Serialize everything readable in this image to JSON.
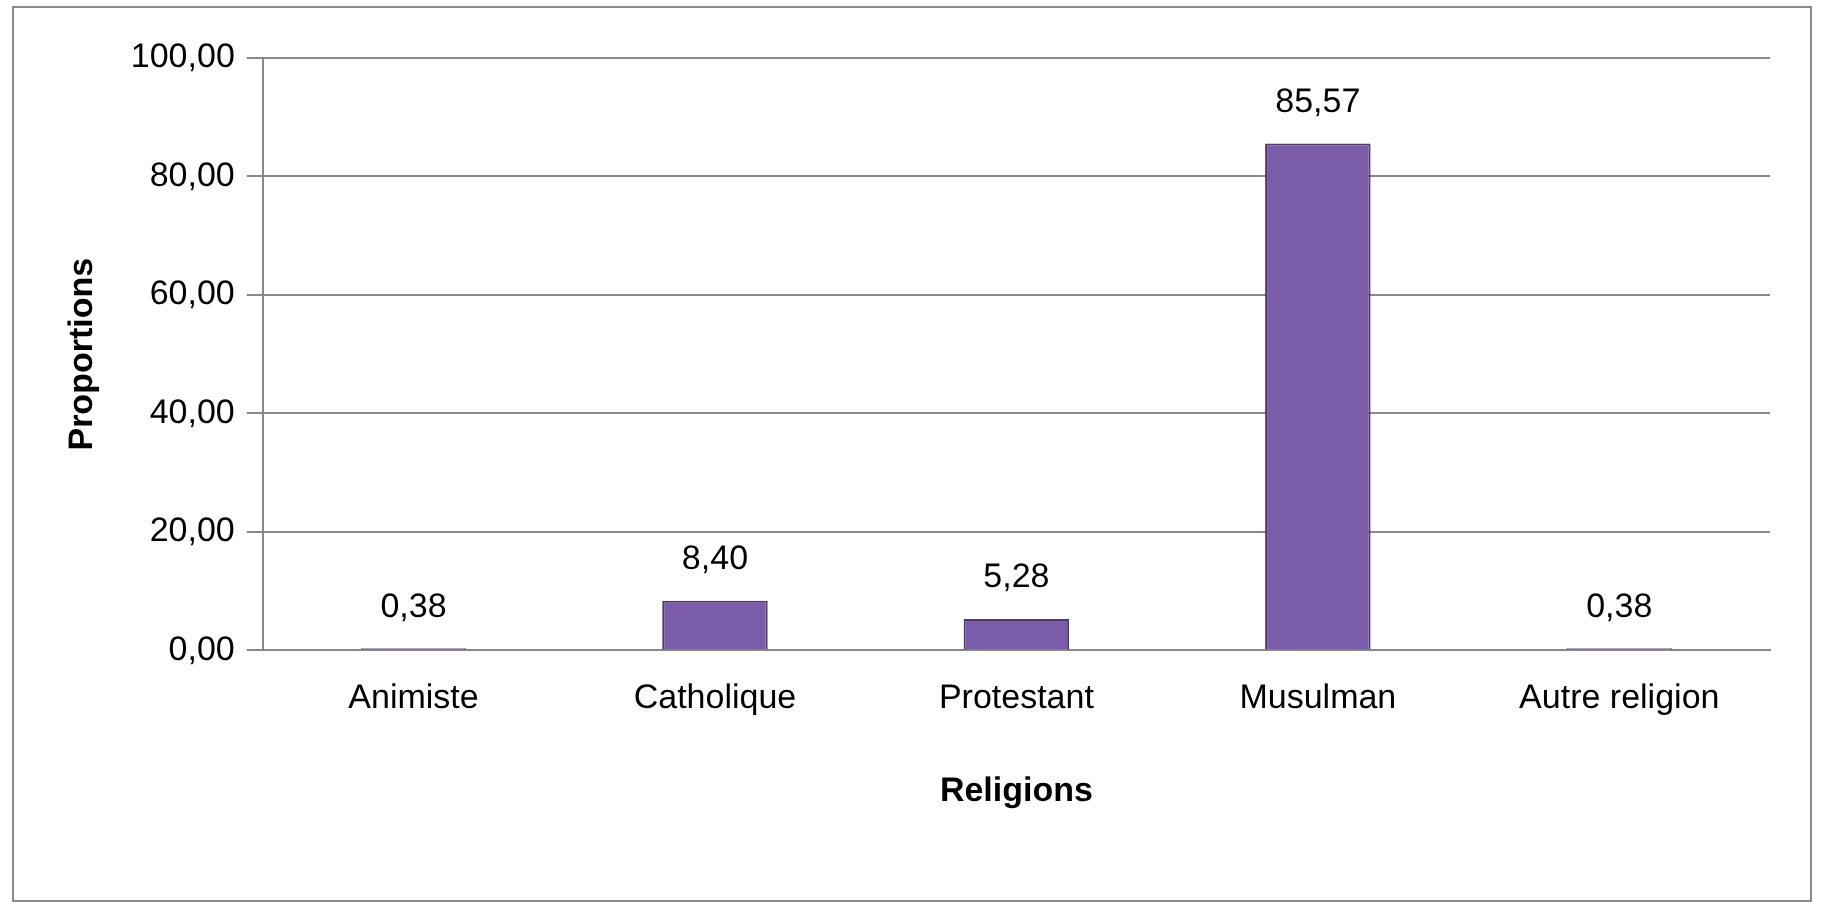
{
  "chart_data": {
    "type": "bar",
    "xlabel": "Religions",
    "ylabel": "Proportions",
    "categories": [
      "Animiste",
      "Catholique",
      "Protestant",
      "Musulman",
      "Autre religion"
    ],
    "values": [
      0.38,
      8.4,
      5.28,
      85.57,
      0.38
    ],
    "value_labels": [
      "0,38",
      "8,40",
      "5,28",
      "85,57",
      "0,38"
    ],
    "color": "#7b5ca8",
    "ylim": [
      0,
      100
    ],
    "yticks": [
      {
        "value": 0,
        "label": "0,00"
      },
      {
        "value": 20,
        "label": "20,00"
      },
      {
        "value": 40,
        "label": "40,00"
      },
      {
        "value": 60,
        "label": "60,00"
      },
      {
        "value": 80,
        "label": "80,00"
      },
      {
        "value": 100,
        "label": "100,00"
      }
    ],
    "grid": "y",
    "legend": false
  }
}
